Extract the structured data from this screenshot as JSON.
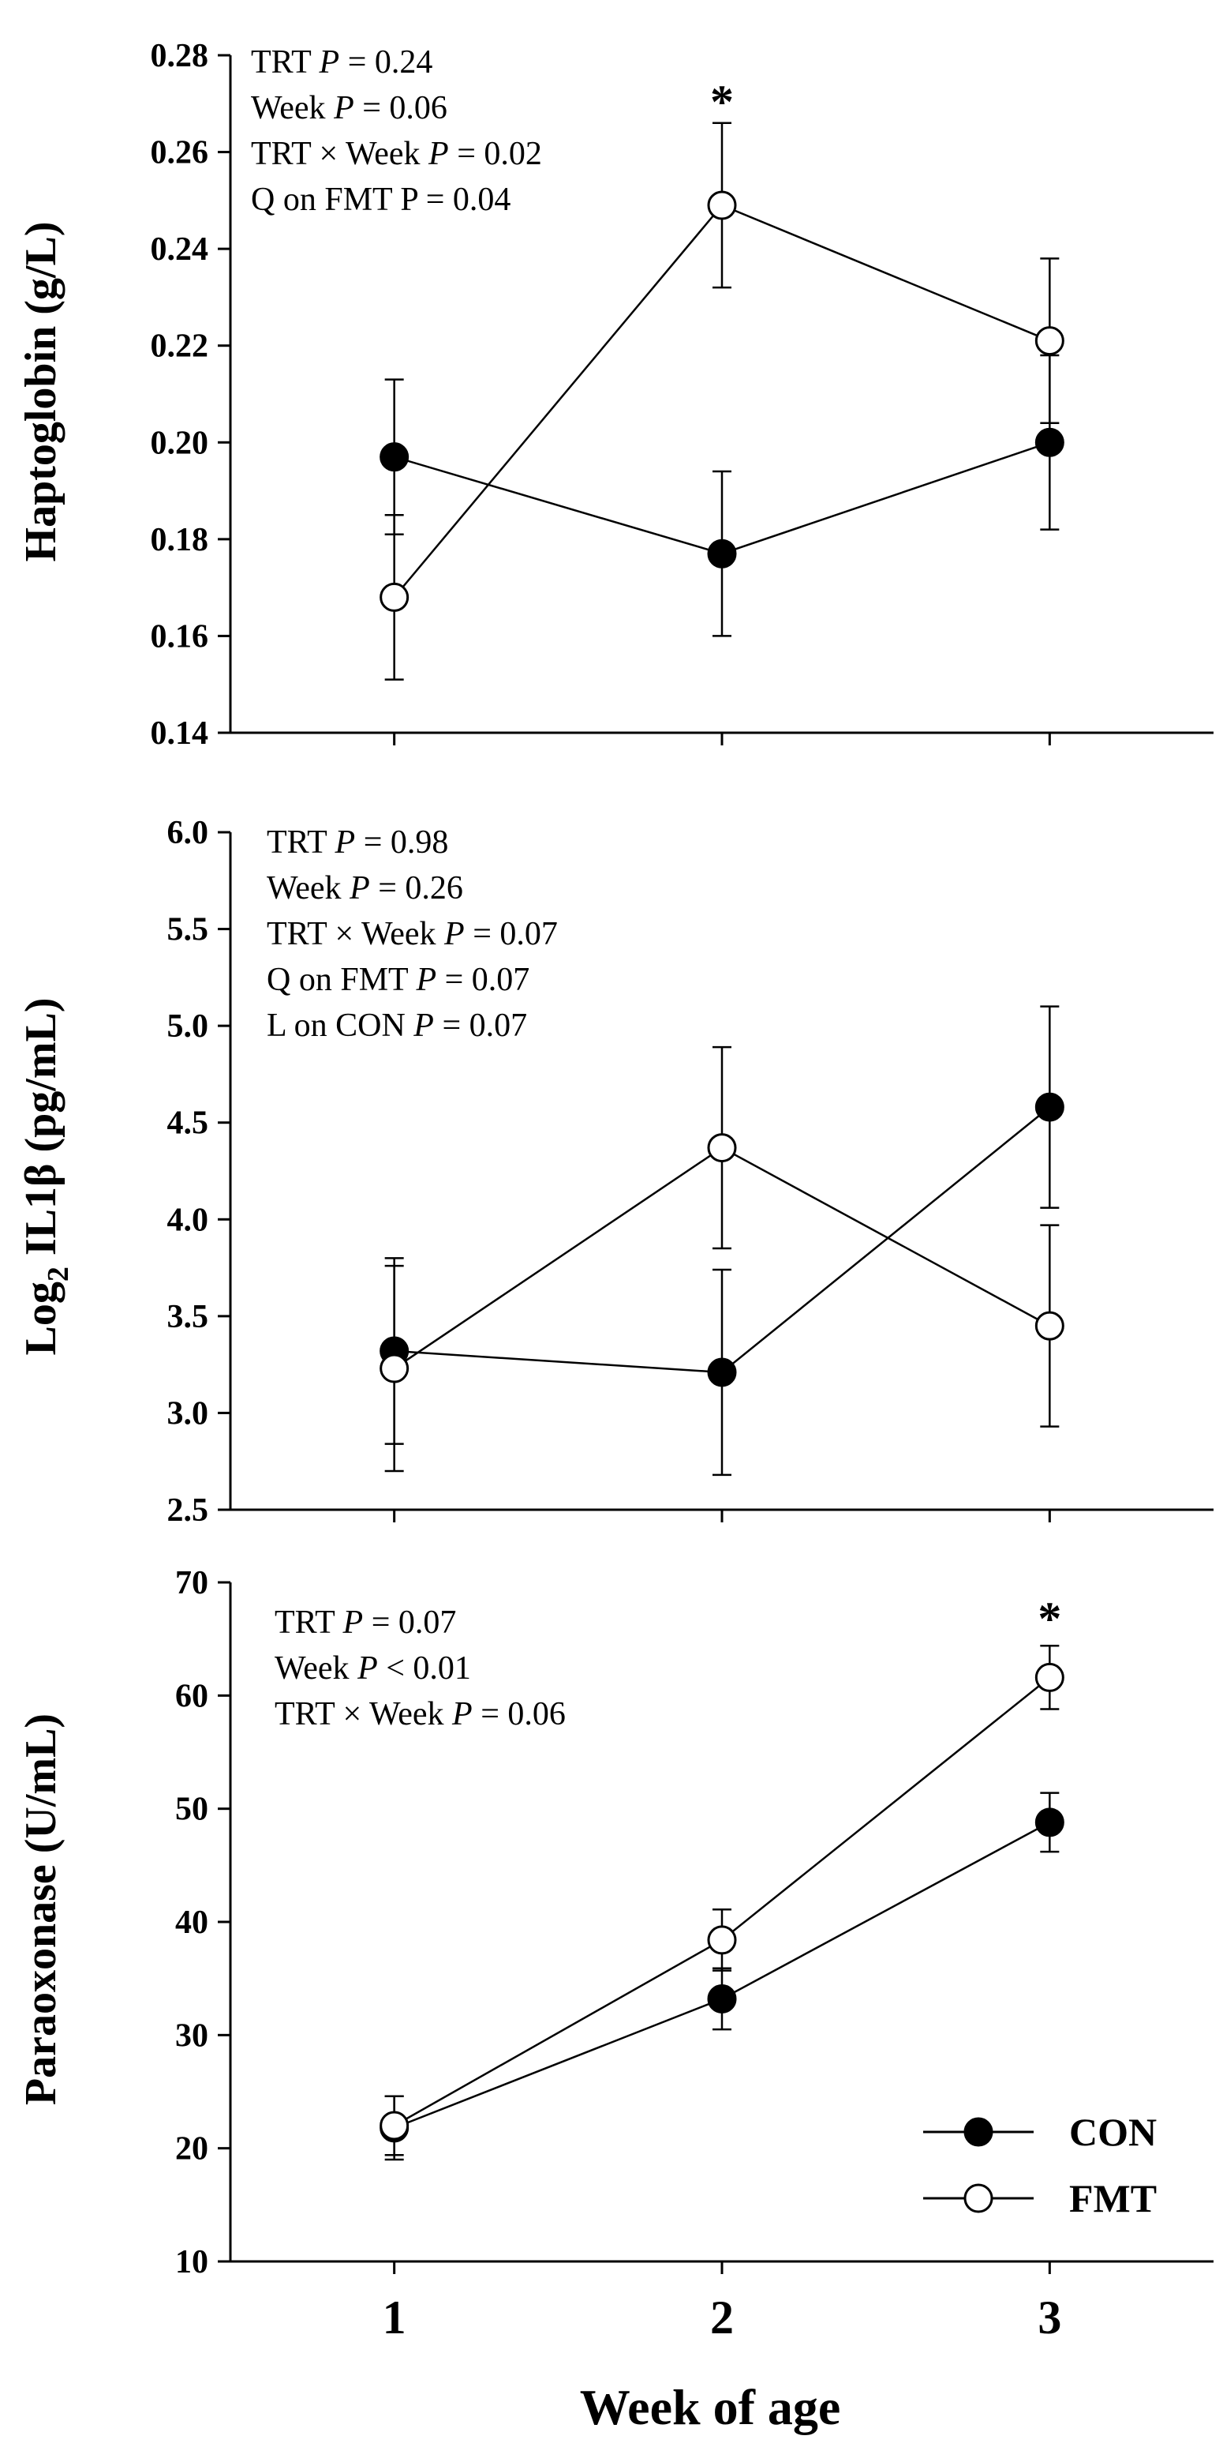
{
  "chart_data": [
    {
      "type": "line",
      "panel": "haptoglobin",
      "ylabel": "Haptoglobin (g/L)",
      "ylim": [
        0.14,
        0.28
      ],
      "yticks": [
        "0.14",
        "0.16",
        "0.18",
        "0.20",
        "0.22",
        "0.24",
        "0.26",
        "0.28"
      ],
      "ytick_values": [
        0.14,
        0.16,
        0.18,
        0.2,
        0.22,
        0.24,
        0.26,
        0.28
      ],
      "x": [
        1,
        2,
        3
      ],
      "series": [
        {
          "name": "CON",
          "fill": "#000000",
          "values": [
            0.197,
            0.177,
            0.2
          ],
          "err": [
            0.016,
            0.017,
            0.018
          ]
        },
        {
          "name": "FMT",
          "fill": "#ffffff",
          "values": [
            0.168,
            0.249,
            0.221
          ],
          "err": [
            0.017,
            0.017,
            0.017
          ]
        }
      ],
      "stats": [
        {
          "prefix": "TRT ",
          "p": "P",
          "suffix": " = 0.24"
        },
        {
          "prefix": "Week ",
          "p": "P",
          "suffix": " = 0.06"
        },
        {
          "prefix": "TRT × Week ",
          "p": "P",
          "suffix": " = 0.02"
        },
        {
          "prefix": "Q on FMT P = 0.04",
          "p": "",
          "suffix": ""
        }
      ],
      "annotations": [
        {
          "text": "*",
          "x": 2,
          "y": 0.272
        }
      ]
    },
    {
      "type": "line",
      "panel": "il1b",
      "ylabel_parts": {
        "main": "Log",
        "sub": "2",
        "rest": " IL1β (pg/mL)"
      },
      "ylim": [
        2.5,
        6.0
      ],
      "yticks": [
        "2.5",
        "3.0",
        "3.5",
        "4.0",
        "4.5",
        "5.0",
        "5.5",
        "6.0"
      ],
      "ytick_values": [
        2.5,
        3.0,
        3.5,
        4.0,
        4.5,
        5.0,
        5.5,
        6.0
      ],
      "x": [
        1,
        2,
        3
      ],
      "series": [
        {
          "name": "CON",
          "fill": "#000000",
          "values": [
            3.32,
            3.21,
            4.58
          ],
          "err": [
            0.48,
            0.53,
            0.52
          ]
        },
        {
          "name": "FMT",
          "fill": "#ffffff",
          "values": [
            3.23,
            4.37,
            3.45
          ],
          "err": [
            0.53,
            0.52,
            0.52
          ]
        }
      ],
      "stats": [
        {
          "prefix": "TRT ",
          "p": "P",
          "suffix": " = 0.98"
        },
        {
          "prefix": "Week ",
          "p": "P",
          "suffix": " = 0.26"
        },
        {
          "prefix": "TRT × Week ",
          "p": "P",
          "suffix": " = 0.07"
        },
        {
          "prefix": "Q on FMT ",
          "p": "P",
          "suffix": " = 0.07"
        },
        {
          "prefix": "L on CON ",
          "p": "P",
          "suffix": " = 0.07"
        }
      ],
      "annotations": []
    },
    {
      "type": "line",
      "panel": "paraoxonase",
      "ylabel": "Paraoxonase (U/mL)",
      "ylim": [
        10,
        70
      ],
      "yticks": [
        "10",
        "20",
        "30",
        "40",
        "50",
        "60",
        "70"
      ],
      "ytick_values": [
        10,
        20,
        30,
        40,
        50,
        60,
        70
      ],
      "x": [
        1,
        2,
        3
      ],
      "series": [
        {
          "name": "CON",
          "fill": "#000000",
          "values": [
            21.8,
            33.2,
            48.8
          ],
          "err": [
            2.8,
            2.7,
            2.6
          ]
        },
        {
          "name": "FMT",
          "fill": "#ffffff",
          "values": [
            22.0,
            38.4,
            61.6
          ],
          "err": [
            2.6,
            2.7,
            2.8
          ]
        }
      ],
      "stats": [
        {
          "prefix": "TRT ",
          "p": "P",
          "suffix": " = 0.07"
        },
        {
          "prefix": "Week ",
          "p": "P",
          "suffix": " < 0.01"
        },
        {
          "prefix": "TRT × Week ",
          "p": "P",
          "suffix": " = 0.06"
        }
      ],
      "annotations": [
        {
          "text": "*",
          "x": 3,
          "y": 67.5
        }
      ]
    }
  ],
  "x_axis": {
    "label": "Week of age",
    "ticks": [
      "1",
      "2",
      "3"
    ],
    "range": [
      0.5,
      3.5
    ]
  },
  "legend": {
    "position": "bottom-right",
    "entries": [
      {
        "label": "CON",
        "fill": "#000000"
      },
      {
        "label": "FMT",
        "fill": "#ffffff"
      }
    ]
  }
}
